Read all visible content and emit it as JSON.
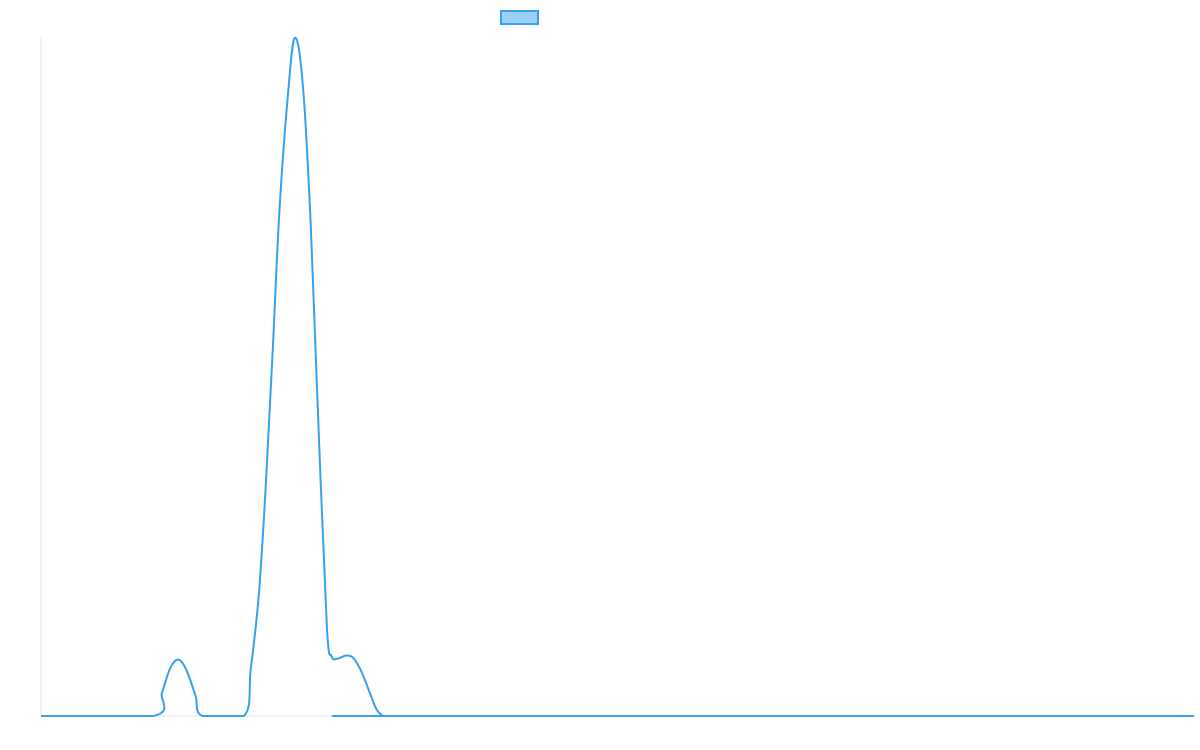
{
  "chart_data": {
    "type": "line",
    "title": "",
    "xlabel": "",
    "ylabel": "",
    "grid": false,
    "legend": {
      "position": "top-center",
      "entries": [
        {
          "name": "",
          "color": "#36a2eb",
          "fill": "#9ad0f5"
        }
      ]
    },
    "xlim": [
      0,
      100
    ],
    "ylim": [
      0,
      100
    ],
    "series": [
      {
        "name": "",
        "color": "#36a2eb",
        "x": [
          0,
          9.7,
          10.5,
          11.2,
          11.9,
          12.6,
          13.4,
          14.0,
          17.6,
          18.2,
          18.9,
          19.5,
          20.1,
          20.7,
          21.4,
          22.0,
          22.7,
          23.4,
          24.1,
          24.8,
          25.2,
          25.6,
          26.0,
          26.5,
          27.1,
          27.8,
          28.5,
          29.1,
          29.7,
          30.3,
          30.8,
          100
        ],
        "y": [
          0,
          0,
          3.5,
          7.0,
          8.3,
          6.8,
          3.0,
          0,
          0,
          7.0,
          18.0,
          34.0,
          54.0,
          75.0,
          91.0,
          99.7,
          93.0,
          72.0,
          41.0,
          13.0,
          8.8,
          8.4,
          8.6,
          8.9,
          8.5,
          6.5,
          3.5,
          1.0,
          0,
          0,
          0,
          0
        ]
      }
    ]
  }
}
